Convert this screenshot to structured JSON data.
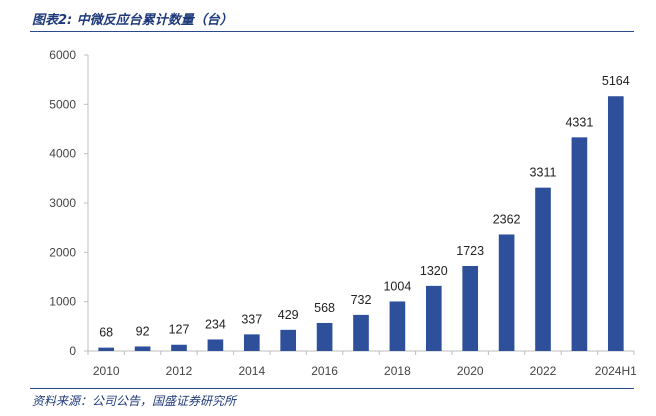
{
  "figure": {
    "title": "图表2: 中微反应台累计数量（台）",
    "source": "资料来源：公司公告，国盛证券研究所"
  },
  "colors": {
    "bar": "#2e4f9a",
    "axis": "#bfbfbf",
    "rule": "#2b4a8a"
  },
  "chart_data": {
    "type": "bar",
    "title": "",
    "xlabel": "",
    "ylabel": "",
    "categories": [
      "2010",
      "2011",
      "2012",
      "2013",
      "2014",
      "2015",
      "2016",
      "2017",
      "2018",
      "2019",
      "2020",
      "2021",
      "2022",
      "2023",
      "2024H1"
    ],
    "x_tick_labels": [
      "2010",
      "",
      "2012",
      "",
      "2014",
      "",
      "2016",
      "",
      "2018",
      "",
      "2020",
      "",
      "2022",
      "",
      "2024H1"
    ],
    "values": [
      68,
      92,
      127,
      234,
      337,
      429,
      568,
      732,
      1004,
      1320,
      1723,
      2362,
      3311,
      4331,
      5164
    ],
    "data_labels": [
      "68",
      "92",
      "127",
      "234",
      "337",
      "429",
      "568",
      "732",
      "1004",
      "1320",
      "1723",
      "2362",
      "3311",
      "4331",
      "5164"
    ],
    "ylim": [
      0,
      6000
    ],
    "yticks": [
      0,
      1000,
      2000,
      3000,
      4000,
      5000,
      6000
    ],
    "ytick_labels": [
      "0",
      "1000",
      "2000",
      "3000",
      "4000",
      "5000",
      "6000"
    ],
    "grid": false,
    "legend": "none"
  }
}
